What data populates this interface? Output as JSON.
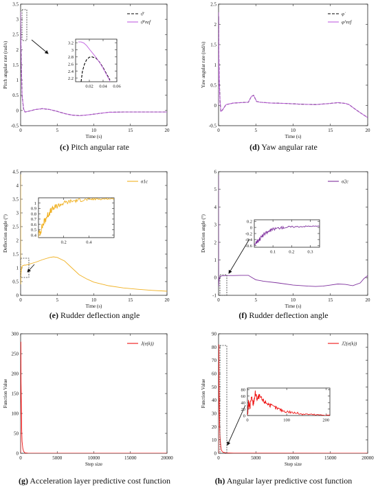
{
  "colors": {
    "axis": "#222222",
    "reference": "#000000",
    "purple": "#c05ce0",
    "dark_purple": "#7d2e9c",
    "orange": "#f0b020",
    "red": "#ee1010"
  },
  "panels": [
    {
      "id": "c",
      "caption_letter": "(c)",
      "caption_text": "Pitch angular rate",
      "chart_data": {
        "type": "line",
        "xlabel": "Time (s)",
        "ylabel": "Pitch angular rate (rad/s)",
        "xlim": [
          0,
          20
        ],
        "ylim": [
          -0.5,
          3.5
        ],
        "xticks": [
          "0",
          "5",
          "10",
          "15",
          "20"
        ],
        "yticks": [
          "-0.5",
          "0",
          "0.5",
          "1",
          "1.5",
          "2",
          "2.5",
          "3",
          "3.5"
        ],
        "legend_position": "top-right",
        "series": [
          {
            "name": "ϑ̇",
            "style": "dashed",
            "color": "#000000",
            "x": [
              0,
              0.01,
              0.03,
              0.05,
              0.1,
              0.2,
              0.4,
              0.6,
              1,
              1.5,
              2,
              3,
              4,
              5,
              6,
              7,
              8,
              9,
              10,
              12,
              14,
              16,
              18,
              20
            ],
            "y": [
              2.1,
              2.8,
              2.6,
              2.2,
              1.4,
              0.5,
              0.05,
              -0.05,
              -0.03,
              0.0,
              0.03,
              0.06,
              0.03,
              -0.03,
              -0.1,
              -0.15,
              -0.17,
              -0.15,
              -0.12,
              -0.06,
              -0.05,
              -0.05,
              -0.05,
              -0.05
            ]
          },
          {
            "name": "ϑ̇^ref",
            "style": "solid",
            "color": "#c05ce0",
            "x": [
              0,
              0.01,
              0.03,
              0.05,
              0.1,
              0.2,
              0.4,
              0.6,
              1,
              1.5,
              2,
              3,
              4,
              5,
              6,
              7,
              8,
              9,
              10,
              12,
              14,
              16,
              18,
              20
            ],
            "y": [
              3.25,
              3.2,
              2.7,
              2.2,
              1.4,
              0.5,
              0.05,
              -0.05,
              -0.03,
              0.0,
              0.03,
              0.06,
              0.03,
              -0.03,
              -0.1,
              -0.15,
              -0.17,
              -0.15,
              -0.12,
              -0.06,
              -0.05,
              -0.05,
              -0.05,
              -0.05
            ]
          }
        ],
        "inset": {
          "xlim": [
            0,
            0.06
          ],
          "ylim": [
            2.1,
            3.3
          ],
          "xticks": [
            "0.02",
            "0.04",
            "0.06"
          ],
          "yticks": [
            "2.2",
            "2.4",
            "2.6",
            "2.8",
            "3",
            "3.2"
          ],
          "series": [
            {
              "name": "ϑ̇",
              "style": "dashed",
              "color": "#000000",
              "x": [
                0.008,
                0.01,
                0.013,
                0.016,
                0.02,
                0.024,
                0.03,
                0.035,
                0.04,
                0.045,
                0.05
              ],
              "y": [
                2.1,
                2.4,
                2.6,
                2.72,
                2.79,
                2.8,
                2.76,
                2.65,
                2.5,
                2.32,
                2.15
              ]
            },
            {
              "name": "ϑ̇^ref",
              "style": "solid",
              "color": "#c05ce0",
              "x": [
                0.004,
                0.008,
                0.012,
                0.016,
                0.02,
                0.025,
                0.03,
                0.035,
                0.04,
                0.045,
                0.05
              ],
              "y": [
                3.22,
                3.22,
                3.19,
                3.12,
                3.02,
                2.9,
                2.78,
                2.64,
                2.48,
                2.3,
                2.12
              ]
            }
          ]
        }
      }
    },
    {
      "id": "d",
      "caption_letter": "(d)",
      "caption_text": "Yaw angular rate",
      "chart_data": {
        "type": "line",
        "xlabel": "Time (s)",
        "ylabel": "Yaw angular rate (rad/s)",
        "xlim": [
          0,
          20
        ],
        "ylim": [
          -0.5,
          2.5
        ],
        "xticks": [
          "0",
          "5",
          "10",
          "15",
          "20"
        ],
        "yticks": [
          "-0.5",
          "0",
          "0.5",
          "1",
          "1.5",
          "2",
          "2.5"
        ],
        "legend_position": "top-right",
        "series": [
          {
            "name": "φ̇",
            "style": "dashed",
            "color": "#000000",
            "x": [
              0,
              0.02,
              0.05,
              0.1,
              0.2,
              0.3,
              0.5,
              1,
              2,
              3,
              4,
              4.4,
              4.7,
              5.1,
              5.5,
              7,
              9,
              11,
              13,
              15,
              16,
              17,
              17.5,
              18,
              19,
              20
            ],
            "y": [
              0.0,
              2.2,
              1.2,
              0.6,
              0.1,
              -0.15,
              -0.12,
              0.02,
              0.06,
              0.07,
              0.08,
              0.22,
              0.25,
              0.1,
              0.08,
              0.06,
              0.05,
              0.03,
              0.02,
              0.05,
              0.07,
              0.05,
              0.02,
              -0.05,
              -0.18,
              -0.3
            ]
          },
          {
            "name": "φ̇^ref",
            "style": "solid",
            "color": "#c05ce0",
            "x": [
              0,
              0.02,
              0.05,
              0.1,
              0.2,
              0.3,
              0.5,
              1,
              2,
              3,
              4,
              4.4,
              4.7,
              5.1,
              5.5,
              7,
              9,
              11,
              13,
              15,
              16,
              17,
              17.5,
              18,
              19,
              20
            ],
            "y": [
              0.0,
              2.3,
              1.2,
              0.6,
              0.1,
              -0.15,
              -0.12,
              0.02,
              0.06,
              0.07,
              0.08,
              0.22,
              0.25,
              0.1,
              0.08,
              0.06,
              0.05,
              0.03,
              0.02,
              0.05,
              0.07,
              0.05,
              0.02,
              -0.05,
              -0.18,
              -0.3
            ]
          }
        ]
      }
    },
    {
      "id": "e",
      "caption_letter": "(e)",
      "caption_text": "Rudder deflection angle",
      "chart_data": {
        "type": "line",
        "xlabel": "Time (s)",
        "ylabel": "Deflection angle (°)",
        "xlim": [
          0,
          20
        ],
        "ylim": [
          0,
          4.5
        ],
        "xticks": [
          "0",
          "5",
          "10",
          "15",
          "20"
        ],
        "yticks": [
          "0",
          "0.5",
          "1",
          "1.5",
          "2",
          "2.5",
          "3",
          "3.5",
          "4",
          "4.5"
        ],
        "legend_position": "top-right",
        "series": [
          {
            "name": "σ1c",
            "style": "solid",
            "color": "#f0b020",
            "x": [
              0,
              0.02,
              0.05,
              0.1,
              0.2,
              0.3,
              0.5,
              0.7,
              1,
              2,
              3,
              4,
              4.5,
              5,
              6,
              7,
              8,
              9,
              10,
              12,
              14,
              16,
              18,
              20
            ],
            "y": [
              4.4,
              0.4,
              0.75,
              0.95,
              1.05,
              1.08,
              1.1,
              1.1,
              1.12,
              1.2,
              1.3,
              1.38,
              1.4,
              1.38,
              1.25,
              1.0,
              0.75,
              0.6,
              0.48,
              0.35,
              0.27,
              0.22,
              0.18,
              0.15
            ]
          }
        ],
        "inset": {
          "xlim": [
            0,
            0.6
          ],
          "ylim": [
            0.35,
            1.1
          ],
          "xticks": [
            "0.2",
            "0.4"
          ],
          "yticks": [
            "0.4",
            "0.5",
            "0.6",
            "0.7",
            "0.8",
            "0.9",
            "1"
          ],
          "noise": 0.08,
          "series": [
            {
              "name": "σ1c",
              "style": "noisy",
              "color": "#f0b020",
              "x": [
                0,
                0.02,
                0.04,
                0.06,
                0.08,
                0.1,
                0.13,
                0.16,
                0.2,
                0.25,
                0.3,
                0.35,
                0.4,
                0.45,
                0.5,
                0.55,
                0.6
              ],
              "y": [
                0.4,
                0.5,
                0.62,
                0.72,
                0.8,
                0.86,
                0.92,
                0.96,
                1.0,
                1.03,
                1.05,
                1.06,
                1.07,
                1.075,
                1.08,
                1.08,
                1.08
              ]
            }
          ]
        }
      }
    },
    {
      "id": "f",
      "caption_letter": "(f)",
      "caption_text": "Rudder deflection angle",
      "chart_data": {
        "type": "line",
        "xlabel": "Time (s)",
        "ylabel": "Deflection angle (°)",
        "xlim": [
          0,
          20
        ],
        "ylim": [
          -1,
          6
        ],
        "xticks": [
          "0",
          "5",
          "10",
          "15",
          "20"
        ],
        "yticks": [
          "-1",
          "0",
          "1",
          "2",
          "3",
          "4",
          "5",
          "6"
        ],
        "legend_position": "top-right",
        "series": [
          {
            "name": "σ2c",
            "style": "solid",
            "color": "#7d2e9c",
            "x": [
              0,
              0.02,
              0.05,
              0.1,
              0.2,
              0.4,
              1,
              2,
              3,
              4,
              4.5,
              5,
              6,
              8,
              10,
              12,
              13,
              14,
              15,
              16,
              17,
              18,
              19,
              19.5,
              20
            ],
            "y": [
              5.8,
              -0.5,
              -0.2,
              -0.05,
              0.05,
              0.1,
              0.12,
              0.12,
              0.13,
              0.13,
              0.0,
              -0.12,
              -0.2,
              -0.3,
              -0.42,
              -0.48,
              -0.5,
              -0.48,
              -0.42,
              -0.36,
              -0.38,
              -0.45,
              -0.3,
              -0.05,
              0.12
            ]
          }
        ],
        "inset": {
          "xlim": [
            0,
            0.35
          ],
          "ylim": [
            -0.65,
            0.25
          ],
          "xticks": [
            "0.1",
            "0.2",
            "0.3"
          ],
          "yticks": [
            "-0.6",
            "-0.4",
            "-0.2",
            "0",
            "0.2"
          ],
          "noise": 0.08,
          "series": [
            {
              "name": "σ2c",
              "style": "noisy",
              "color": "#7d2e9c",
              "x": [
                0,
                0.02,
                0.04,
                0.06,
                0.08,
                0.1,
                0.13,
                0.16,
                0.2,
                0.25,
                0.3,
                0.35
              ],
              "y": [
                -0.55,
                -0.42,
                -0.3,
                -0.2,
                -0.12,
                -0.06,
                -0.02,
                0.0,
                0.02,
                0.03,
                0.04,
                0.04
              ]
            }
          ]
        }
      }
    },
    {
      "id": "g",
      "caption_letter": "(g)",
      "caption_text": "Acceleration layer predictive cost function",
      "chart_data": {
        "type": "line",
        "xlabel": "Step size",
        "ylabel": "Function Value",
        "xlim": [
          0,
          20000
        ],
        "ylim": [
          0,
          300
        ],
        "xticks": [
          "0",
          "5000",
          "10000",
          "15000",
          "20000"
        ],
        "yticks": [
          "0",
          "50",
          "100",
          "150",
          "200",
          "250",
          "300"
        ],
        "legend_position": "top-right",
        "series": [
          {
            "name": "J(e(k))",
            "style": "solid",
            "color": "#ee1010",
            "x": [
              0,
              20,
              40,
              60,
              100,
              150,
              200,
              300,
              400,
              600,
              1000,
              2000,
              20000
            ],
            "y": [
              0,
              250,
              280,
              180,
              120,
              60,
              30,
              12,
              5,
              1,
              0.3,
              0.1,
              0
            ]
          }
        ]
      }
    },
    {
      "id": "h",
      "caption_letter": "(h)",
      "caption_text": "Angular layer predictive cost function",
      "chart_data": {
        "type": "line",
        "xlabel": "Step size",
        "ylabel": "Function Value",
        "xlim": [
          0,
          20000
        ],
        "ylim": [
          0,
          90
        ],
        "xticks": [
          "0",
          "5000",
          "10000",
          "15000",
          "20000"
        ],
        "yticks": [
          "0",
          "10",
          "20",
          "30",
          "40",
          "50",
          "60",
          "70",
          "80",
          "90"
        ],
        "legend_position": "top-right",
        "series": [
          {
            "name": "J2(e(k))",
            "style": "solid",
            "color": "#ee1010",
            "x": [
              0,
              20,
              40,
              60,
              100,
              150,
              200,
              300,
              400,
              600,
              1000,
              2000,
              20000
            ],
            "y": [
              0,
              60,
              82,
              50,
              35,
              20,
              12,
              5,
              2,
              0.8,
              0.3,
              0.1,
              0
            ]
          }
        ],
        "inset": {
          "xlim": [
            0,
            210
          ],
          "ylim": [
            0,
            85
          ],
          "xticks": [
            "0",
            "100",
            "200"
          ],
          "yticks": [
            "0",
            "20",
            "40",
            "60",
            "80"
          ],
          "noise": 12,
          "series": [
            {
              "name": "J2(e(k))",
              "style": "noisy",
              "color": "#ee1010",
              "x": [
                0,
                3,
                6,
                10,
                15,
                20,
                25,
                30,
                40,
                50,
                60,
                75,
                90,
                110,
                130,
                150,
                175,
                200,
                210
              ],
              "y": [
                0,
                40,
                25,
                55,
                35,
                70,
                50,
                60,
                45,
                38,
                30,
                22,
                15,
                10,
                6,
                4,
                2,
                1,
                1
              ]
            }
          ]
        }
      }
    }
  ]
}
